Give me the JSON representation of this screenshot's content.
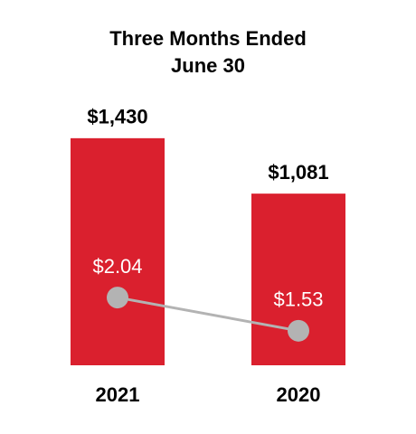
{
  "chart_data": {
    "type": "bar",
    "title": "Three Months Ended",
    "subtitle": "June 30",
    "categories": [
      "2021",
      "2020"
    ],
    "series": [
      {
        "type": "bar",
        "color": "#da202e",
        "values": [
          1430,
          1081
        ],
        "value_labels": [
          "$1,430",
          "$1,081"
        ]
      },
      {
        "type": "line",
        "axis": "y2",
        "color": "#b3b3b3",
        "values": [
          2.04,
          1.53
        ],
        "value_labels": [
          "$2.04",
          "$1.53"
        ]
      }
    ],
    "ylim": [
      0,
      1600
    ],
    "y2lim": [
      1,
      4.9
    ]
  }
}
